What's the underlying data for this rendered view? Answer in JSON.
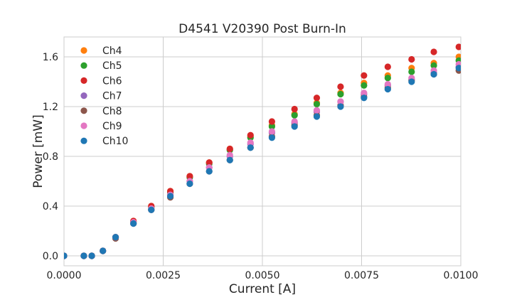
{
  "chart_data": {
    "type": "scatter",
    "title": "D4541 V20390 Post Burn-In",
    "xlabel": "Current [A]",
    "ylabel": "Power [mW]",
    "xlim": [
      0.0,
      0.01
    ],
    "ylim": [
      -0.08,
      1.76
    ],
    "xticks": [
      0.0,
      0.0025,
      0.005,
      0.0075,
      0.01
    ],
    "xtick_labels": [
      "0.0000",
      "0.0025",
      "0.0050",
      "0.0075",
      "0.0100"
    ],
    "yticks": [
      0.0,
      0.4,
      0.8,
      1.2,
      1.6
    ],
    "ytick_labels": [
      "0.0",
      "0.4",
      "0.8",
      "1.2",
      "1.6"
    ],
    "grid": true,
    "legend_position": "top-left",
    "x": [
      0.0,
      0.0005,
      0.0007,
      0.00098,
      0.0013,
      0.00175,
      0.0022,
      0.00268,
      0.00317,
      0.00366,
      0.00418,
      0.0047,
      0.00524,
      0.00581,
      0.00637,
      0.00697,
      0.00756,
      0.00816,
      0.00876,
      0.00932,
      0.00995
    ],
    "series": [
      {
        "name": "Ch4",
        "color": "#ff7f0e",
        "values": [
          0.0,
          0.0,
          0.0,
          0.04,
          0.15,
          0.28,
          0.4,
          0.52,
          0.64,
          0.75,
          0.86,
          0.96,
          1.05,
          1.14,
          1.23,
          1.31,
          1.39,
          1.45,
          1.51,
          1.55,
          1.6
        ]
      },
      {
        "name": "Ch5",
        "color": "#2ca02c",
        "values": [
          0.0,
          0.0,
          0.0,
          0.04,
          0.15,
          0.27,
          0.39,
          0.51,
          0.63,
          0.74,
          0.85,
          0.95,
          1.04,
          1.13,
          1.22,
          1.3,
          1.37,
          1.43,
          1.48,
          1.53,
          1.57
        ]
      },
      {
        "name": "Ch6",
        "color": "#d62728",
        "values": [
          0.0,
          0.0,
          0.0,
          0.04,
          0.15,
          0.28,
          0.4,
          0.52,
          0.64,
          0.75,
          0.86,
          0.97,
          1.08,
          1.18,
          1.27,
          1.36,
          1.45,
          1.52,
          1.58,
          1.64,
          1.68
        ]
      },
      {
        "name": "Ch7",
        "color": "#9467bd",
        "values": [
          0.0,
          0.0,
          0.0,
          0.04,
          0.15,
          0.26,
          0.37,
          0.49,
          0.6,
          0.71,
          0.8,
          0.9,
          0.99,
          1.07,
          1.16,
          1.24,
          1.3,
          1.37,
          1.42,
          1.47,
          1.52
        ]
      },
      {
        "name": "Ch8",
        "color": "#8c564b",
        "values": [
          0.0,
          0.0,
          0.0,
          0.04,
          0.14,
          0.26,
          0.37,
          0.47,
          0.58,
          0.68,
          0.77,
          0.87,
          0.96,
          1.05,
          1.13,
          1.21,
          1.28,
          1.35,
          1.41,
          1.46,
          1.49
        ]
      },
      {
        "name": "Ch9",
        "color": "#e377c2",
        "values": [
          0.0,
          0.0,
          0.0,
          0.04,
          0.15,
          0.27,
          0.38,
          0.49,
          0.6,
          0.71,
          0.81,
          0.91,
          1.0,
          1.08,
          1.17,
          1.24,
          1.31,
          1.38,
          1.43,
          1.49,
          1.54
        ]
      },
      {
        "name": "Ch10",
        "color": "#1f77b4",
        "values": [
          0.0,
          0.0,
          0.0,
          0.04,
          0.15,
          0.26,
          0.37,
          0.48,
          0.58,
          0.68,
          0.77,
          0.87,
          0.95,
          1.04,
          1.12,
          1.2,
          1.27,
          1.34,
          1.4,
          1.46,
          1.51
        ]
      }
    ]
  }
}
